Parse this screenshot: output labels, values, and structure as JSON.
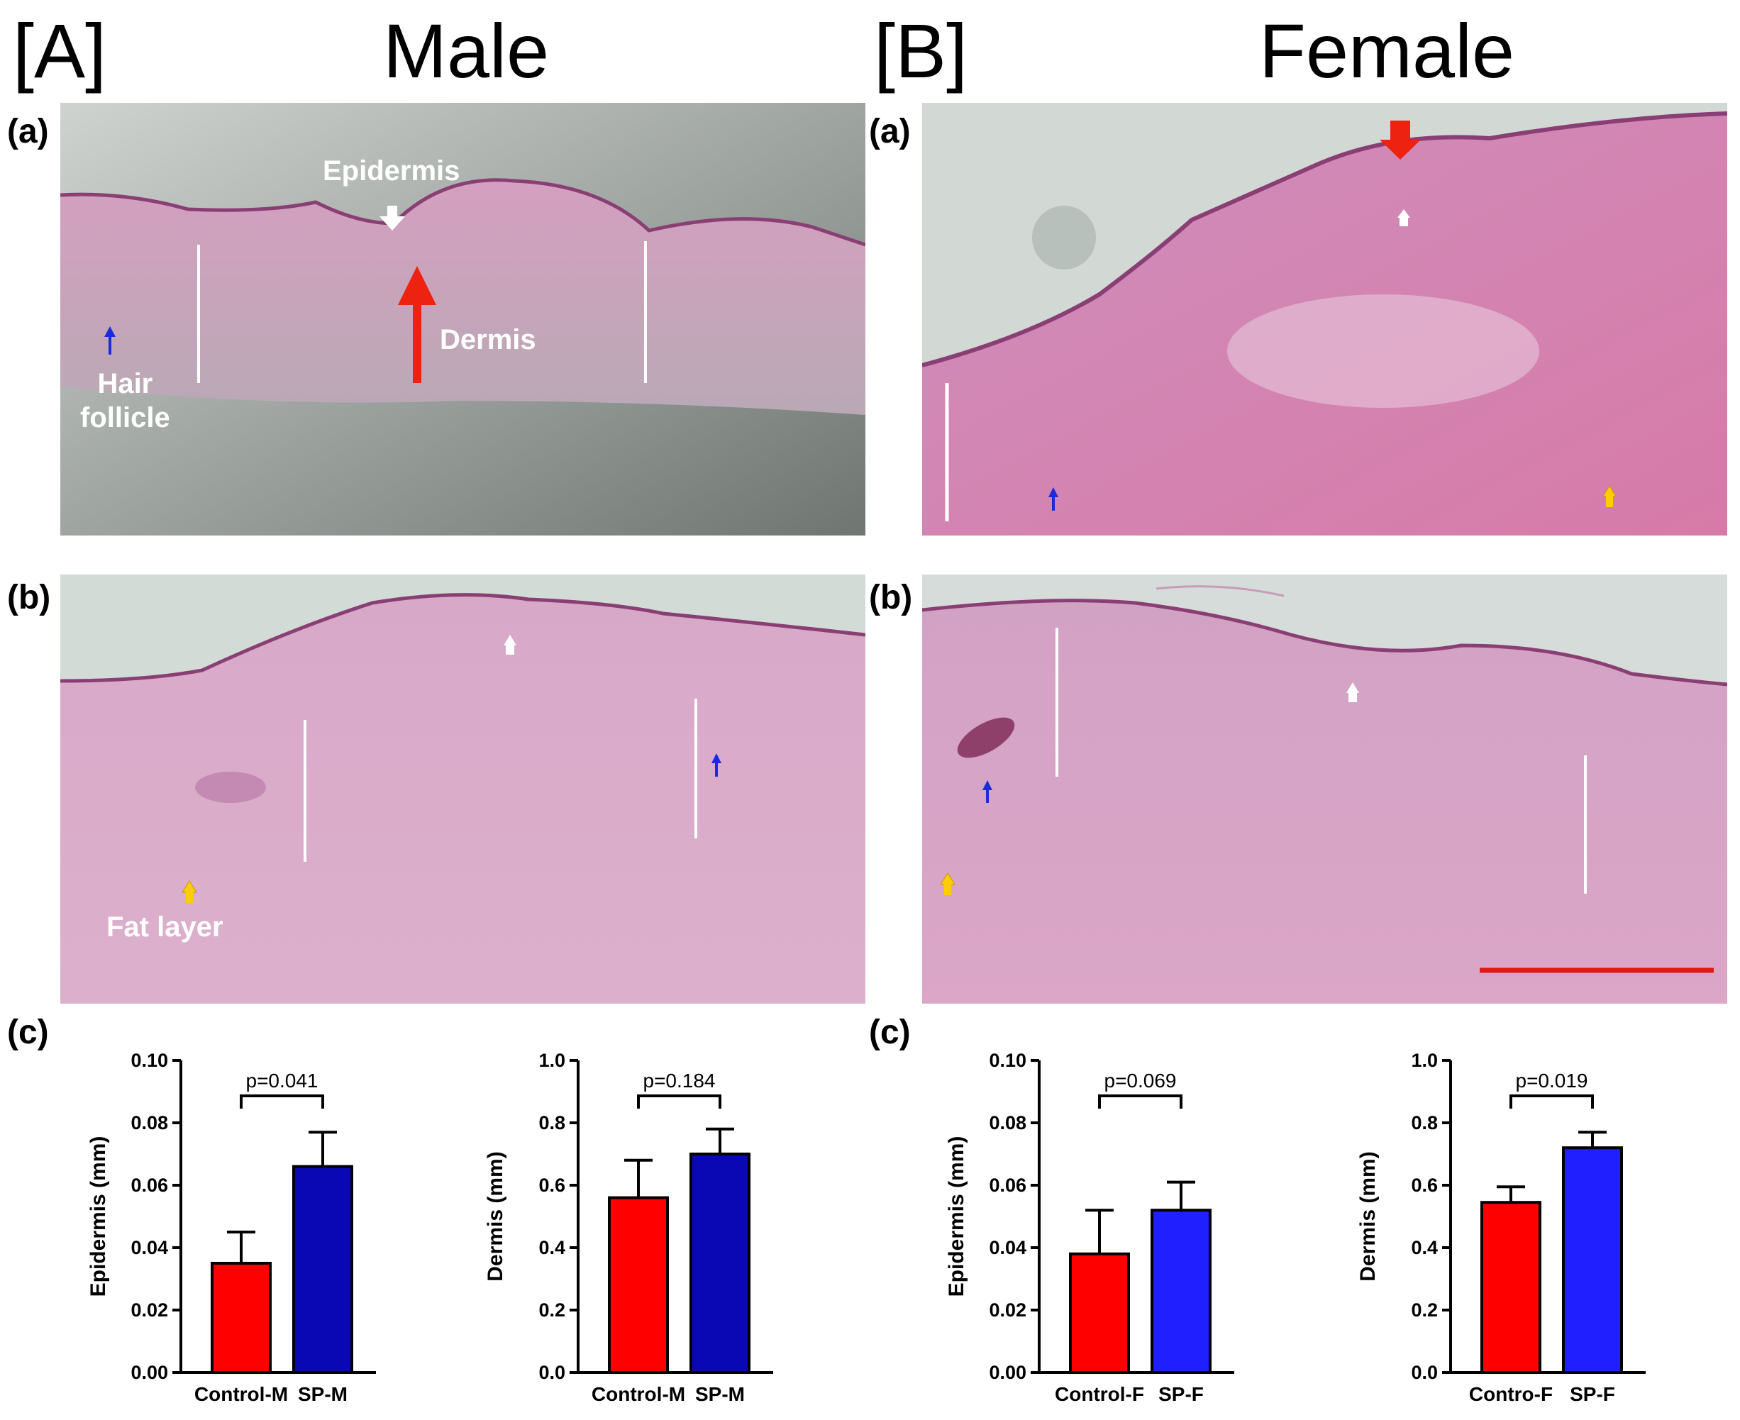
{
  "headings": {
    "panel_a_tag": "[A]",
    "panel_a_title": "Male",
    "panel_b_tag": "[B]",
    "panel_b_title": "Female"
  },
  "sublabels": {
    "a": "(a)",
    "b": "(b)",
    "c": "(c)"
  },
  "annotations": {
    "epidermis": "Epidermis",
    "dermis": "Dermis",
    "hair_follicle_line1": "Hair",
    "hair_follicle_line2": "follicle",
    "fat_layer": "Fat layer"
  },
  "colors": {
    "control": "#ff0000",
    "sp_male": "#0a08b4",
    "sp_female": "#1f1fff",
    "tissue": "#d99cc4",
    "background_slide": "#c9cfcc",
    "red_arrow": "#ee2211",
    "blue_arrow": "#1a2adf",
    "yellow_arrow": "#ffcc00"
  },
  "chart_data": [
    {
      "type": "bar",
      "panel": "A(c) left",
      "categories": [
        "Control-M",
        "SP-M"
      ],
      "values": [
        0.035,
        0.066
      ],
      "errors": [
        0.01,
        0.011
      ],
      "ylabel": "Epidermis (mm)",
      "ylim": [
        0,
        0.1
      ],
      "yticks": [
        "0.00",
        "0.02",
        "0.04",
        "0.06",
        "0.08",
        "0.10"
      ],
      "p_label": "p=0.041",
      "colors": [
        "#ff0000",
        "#0a08b4"
      ]
    },
    {
      "type": "bar",
      "panel": "A(c) right",
      "categories": [
        "Control-M",
        "SP-M"
      ],
      "values": [
        0.56,
        0.7
      ],
      "errors": [
        0.12,
        0.08
      ],
      "ylabel": "Dermis (mm)",
      "ylim": [
        0,
        1.0
      ],
      "yticks": [
        "0.0",
        "0.2",
        "0.4",
        "0.6",
        "0.8",
        "1.0"
      ],
      "p_label": "p=0.184",
      "colors": [
        "#ff0000",
        "#0a08b4"
      ]
    },
    {
      "type": "bar",
      "panel": "B(c) left",
      "categories": [
        "Control-F",
        "SP-F"
      ],
      "values": [
        0.038,
        0.052
      ],
      "errors": [
        0.014,
        0.009
      ],
      "ylabel": "Epidermis (mm)",
      "ylim": [
        0,
        0.1
      ],
      "yticks": [
        "0.00",
        "0.02",
        "0.04",
        "0.06",
        "0.08",
        "0.10"
      ],
      "p_label": "p=0.069",
      "colors": [
        "#ff0000",
        "#1f1fff"
      ]
    },
    {
      "type": "bar",
      "panel": "B(c) right",
      "categories": [
        "Contro-F",
        "SP-F"
      ],
      "values": [
        0.545,
        0.72
      ],
      "errors": [
        0.05,
        0.05
      ],
      "ylabel": "Dermis (mm)",
      "ylim": [
        0,
        1.0
      ],
      "yticks": [
        "0.0",
        "0.2",
        "0.4",
        "0.6",
        "0.8",
        "1.0"
      ],
      "p_label": "p=0.019",
      "colors": [
        "#ff0000",
        "#1f1fff"
      ]
    }
  ]
}
